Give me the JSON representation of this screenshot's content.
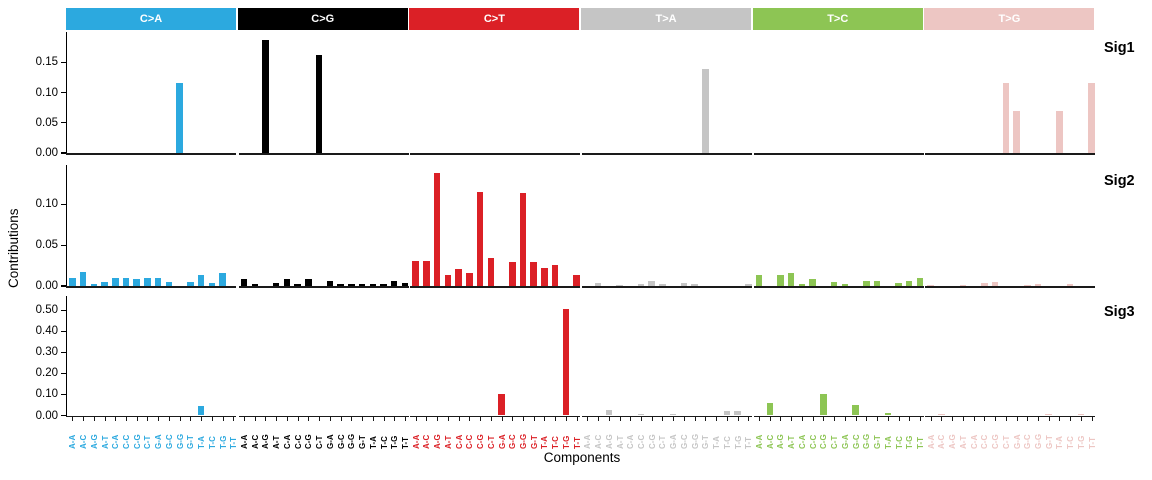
{
  "figure": {
    "xlabel": "Components",
    "ylabel": "Contributions"
  },
  "chart_data": {
    "type": "bar",
    "xlabel": "Components",
    "ylabel": "Contributions",
    "legend_position": "none",
    "grid": false,
    "facet_layout": "3 signature rows x 6 mutation-type columns",
    "mutation_types": [
      {
        "label": "C>A",
        "color": "#2CA9DF"
      },
      {
        "label": "C>G",
        "color": "#000000"
      },
      {
        "label": "C>T",
        "color": "#DB2026"
      },
      {
        "label": "T>A",
        "color": "#C5C5C5"
      },
      {
        "label": "T>C",
        "color": "#8DC554"
      },
      {
        "label": "T>G",
        "color": "#EDC6C3"
      }
    ],
    "categories": [
      "A-A",
      "A-C",
      "A-G",
      "A-T",
      "C-A",
      "C-C",
      "C-G",
      "C-T",
      "G-A",
      "G-C",
      "G-G",
      "G-T",
      "T-A",
      "T-C",
      "T-G",
      "T-T"
    ],
    "panels": [
      {
        "label": "Sig1",
        "yticks": [
          0,
          0.05,
          0.1,
          0.15
        ],
        "ylim": [
          0,
          0.2
        ],
        "values": {
          "C>A": [
            0,
            0,
            0,
            0,
            0,
            0,
            0,
            0,
            0,
            0,
            0.116,
            0,
            0,
            0,
            0,
            0
          ],
          "C>G": [
            0,
            0,
            0.187,
            0,
            0,
            0,
            0,
            0.162,
            0,
            0,
            0,
            0,
            0,
            0,
            0,
            0
          ],
          "C>T": [
            0,
            0,
            0,
            0,
            0,
            0,
            0,
            0,
            0,
            0,
            0,
            0,
            0,
            0,
            0,
            0
          ],
          "T>A": [
            0,
            0,
            0,
            0,
            0,
            0,
            0,
            0,
            0,
            0,
            0,
            0.139,
            0,
            0,
            0,
            0
          ],
          "T>C": [
            0,
            0,
            0,
            0,
            0,
            0,
            0,
            0,
            0,
            0,
            0,
            0,
            0,
            0,
            0,
            0
          ],
          "T>G": [
            0,
            0,
            0,
            0,
            0,
            0,
            0,
            0.115,
            0.069,
            0,
            0,
            0,
            0.069,
            0,
            0,
            0.115
          ]
        }
      },
      {
        "label": "Sig2",
        "yticks": [
          0,
          0.05,
          0.1
        ],
        "ylim": [
          0,
          0.148
        ],
        "values": {
          "C>A": [
            0.01,
            0.017,
            0.002,
            0.005,
            0.01,
            0.01,
            0.009,
            0.01,
            0.01,
            0.005,
            0,
            0.005,
            0.013,
            0.004,
            0.016,
            0
          ],
          "C>G": [
            0.008,
            0.002,
            0,
            0.004,
            0.008,
            0.002,
            0.009,
            0,
            0.006,
            0.002,
            0.002,
            0.002,
            0.002,
            0.003,
            0.006,
            0.004
          ],
          "C>T": [
            0.03,
            0.03,
            0.138,
            0.013,
            0.021,
            0.016,
            0.115,
            0.034,
            0,
            0.029,
            0.114,
            0.029,
            0.022,
            0.026,
            0,
            0.014
          ],
          "T>A": [
            0,
            0.004,
            0,
            0.001,
            0,
            0.003,
            0.006,
            0.002,
            0,
            0.004,
            0.002,
            0,
            0,
            0,
            0,
            0.002
          ],
          "T>C": [
            0.013,
            0,
            0.013,
            0.016,
            0.003,
            0.008,
            0,
            0.005,
            0.002,
            0,
            0.006,
            0.006,
            0,
            0.004,
            0.006,
            0.01
          ],
          "T>G": [
            0.001,
            0,
            0,
            0.001,
            0,
            0.004,
            0.005,
            0,
            0,
            0.001,
            0.003,
            0,
            0,
            0.002,
            0,
            0
          ]
        }
      },
      {
        "label": "Sig3",
        "yticks": [
          0,
          0.1,
          0.2,
          0.3,
          0.4,
          0.5
        ],
        "ylim": [
          0,
          0.568
        ],
        "values": {
          "C>A": [
            0,
            0,
            0,
            0,
            0,
            0,
            0,
            0,
            0,
            0,
            0,
            0,
            0.045,
            0,
            0,
            0
          ],
          "C>G": [
            0,
            0,
            0,
            0,
            0,
            0,
            0,
            0,
            0,
            0,
            0,
            0,
            0,
            0,
            0,
            0
          ],
          "C>T": [
            0,
            0,
            0,
            0,
            0,
            0,
            0,
            0,
            0.1,
            0,
            0,
            0,
            0,
            0,
            0.508,
            0
          ],
          "T>A": [
            0,
            0,
            0.025,
            0,
            0,
            0.008,
            0,
            0,
            0.008,
            0,
            0,
            0,
            0,
            0.022,
            0.022,
            0
          ],
          "T>C": [
            0,
            0.06,
            0,
            0,
            0,
            0,
            0.1,
            0,
            0,
            0.05,
            0,
            0,
            0.012,
            0,
            0,
            0
          ],
          "T>G": [
            0,
            0.008,
            0,
            0,
            0,
            0,
            0,
            0,
            0,
            0,
            0,
            0.006,
            0,
            0,
            0.006,
            0
          ]
        }
      }
    ]
  }
}
